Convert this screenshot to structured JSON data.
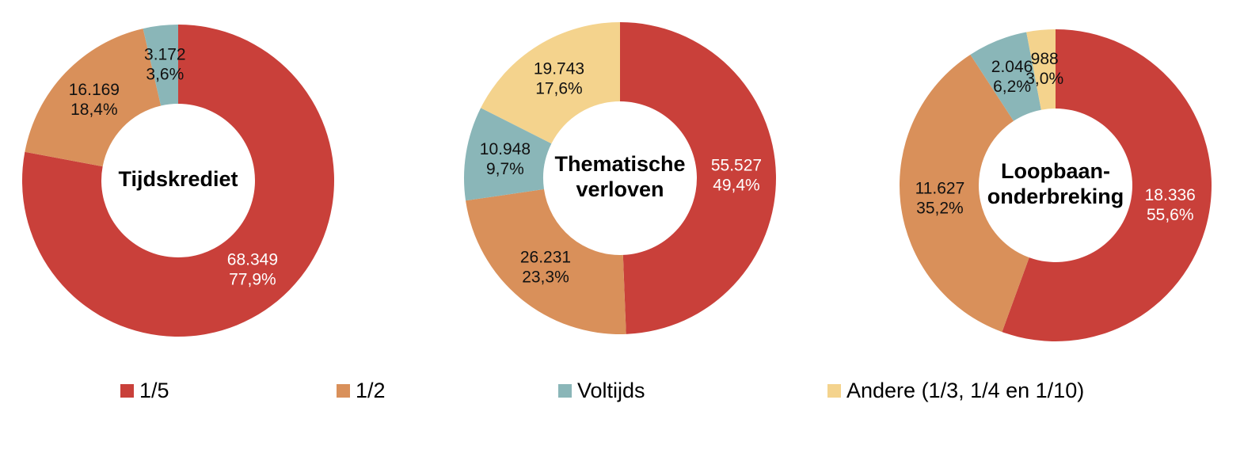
{
  "chart_data": [
    {
      "type": "pie",
      "title": [
        "Tijdskrediet"
      ],
      "categories": [
        "1/5",
        "1/2",
        "Voltijds"
      ],
      "values": [
        68349,
        16169,
        3172
      ],
      "value_labels": [
        "68.349",
        "16.169",
        "3.172"
      ],
      "percentages": [
        77.9,
        18.4,
        3.6
      ],
      "percentage_labels": [
        "77,9%",
        "18,4%",
        "3,6%"
      ]
    },
    {
      "type": "pie",
      "title": [
        "Thematische",
        "verloven"
      ],
      "categories": [
        "1/5",
        "1/2",
        "Voltijds",
        "Andere (1/3, 1/4 en 1/10)"
      ],
      "values": [
        55527,
        26231,
        10948,
        19743
      ],
      "value_labels": [
        "55.527",
        "26.231",
        "10.948",
        "19.743"
      ],
      "percentages": [
        49.4,
        23.3,
        9.7,
        17.6
      ],
      "percentage_labels": [
        "49,4%",
        "23,3%",
        "9,7%",
        "17,6%"
      ]
    },
    {
      "type": "pie",
      "title": [
        "Loopbaan-",
        "onderbreking"
      ],
      "categories": [
        "1/5",
        "1/2",
        "Voltijds",
        "Andere (1/3, 1/4 en 1/10)"
      ],
      "values": [
        18336,
        11627,
        2046,
        988
      ],
      "value_labels": [
        "18.336",
        "11.627",
        "2.046",
        "988"
      ],
      "percentages": [
        55.6,
        35.2,
        6.2,
        3.0
      ],
      "percentage_labels": [
        "55,6%",
        "35,2%",
        "6,2%",
        "3,0%"
      ]
    }
  ],
  "legend": {
    "labels": [
      "1/5",
      "1/2",
      "Voltijds",
      "Andere (1/3, 1/4 en 1/10)"
    ],
    "colors": [
      "#c9403a",
      "#d9905a",
      "#8ab6b8",
      "#f4d38d"
    ]
  }
}
